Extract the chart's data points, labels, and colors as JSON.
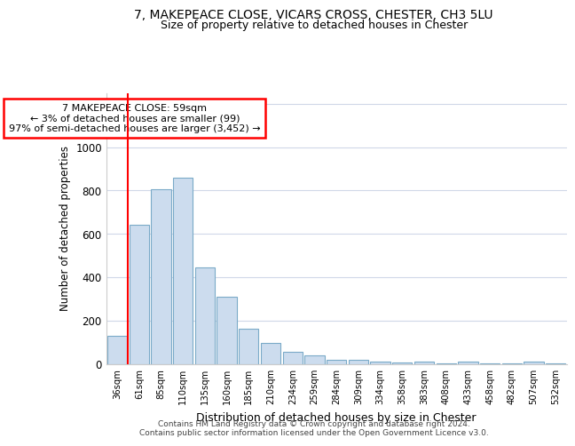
{
  "title1": "7, MAKEPEACE CLOSE, VICARS CROSS, CHESTER, CH3 5LU",
  "title2": "Size of property relative to detached houses in Chester",
  "xlabel": "Distribution of detached houses by size in Chester",
  "ylabel": "Number of detached properties",
  "categories": [
    "36sqm",
    "61sqm",
    "85sqm",
    "110sqm",
    "135sqm",
    "160sqm",
    "185sqm",
    "210sqm",
    "234sqm",
    "259sqm",
    "284sqm",
    "309sqm",
    "334sqm",
    "358sqm",
    "383sqm",
    "408sqm",
    "433sqm",
    "458sqm",
    "482sqm",
    "507sqm",
    "532sqm"
  ],
  "values": [
    130,
    640,
    805,
    860,
    445,
    310,
    160,
    95,
    55,
    40,
    20,
    20,
    10,
    5,
    12,
    3,
    10,
    3,
    3,
    10,
    3
  ],
  "bar_color": "#ccdcee",
  "bar_edge_color": "#7aaac8",
  "red_line_x": 0.5,
  "annotation_text": "7 MAKEPEACE CLOSE: 59sqm\n← 3% of detached houses are smaller (99)\n97% of semi-detached houses are larger (3,452) →",
  "annotation_box_color": "white",
  "annotation_box_edge_color": "red",
  "ylim": [
    0,
    1250
  ],
  "yticks": [
    0,
    200,
    400,
    600,
    800,
    1000,
    1200
  ],
  "background_color": "#ffffff",
  "plot_background_color": "#ffffff",
  "grid_color": "#d0d8e8",
  "footer": "Contains HM Land Registry data © Crown copyright and database right 2024.\nContains public sector information licensed under the Open Government Licence v3.0."
}
